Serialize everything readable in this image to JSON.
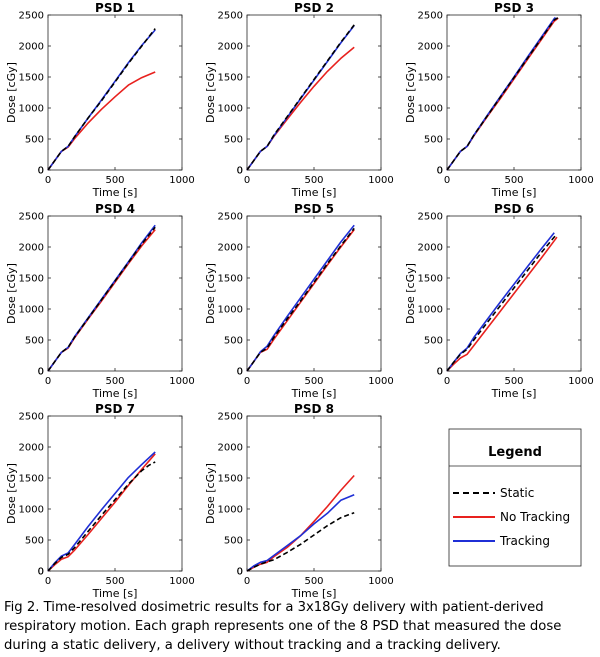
{
  "caption": "Fig 2. Time-resolved dosimetric results for a 3x18Gy delivery with patient-derived respiratory motion. Each graph represents one of the 8 PSD that measured the dose during a static delivery, a delivery without tracking and a tracking delivery.",
  "legend": {
    "title": "Legend",
    "items": [
      {
        "label": "Static",
        "color": "#000000",
        "dash": true
      },
      {
        "label": "No Tracking",
        "color": "#e8211e",
        "dash": false
      },
      {
        "label": "Tracking",
        "color": "#1f2fd6",
        "dash": false
      }
    ]
  },
  "chart_data": [
    {
      "type": "line",
      "title": "PSD 1",
      "xlabel": "Time [s]",
      "ylabel": "Dose [cGy]",
      "xlim": [
        0,
        1000
      ],
      "ylim": [
        0,
        2500
      ],
      "xticks": [
        0,
        500,
        1000
      ],
      "yticks": [
        0,
        500,
        1000,
        1500,
        2000,
        2500
      ],
      "series": [
        {
          "name": "Static",
          "x": [
            0,
            50,
            100,
            150,
            200,
            300,
            400,
            500,
            600,
            700,
            800
          ],
          "y": [
            0,
            150,
            300,
            380,
            540,
            840,
            1120,
            1420,
            1720,
            2000,
            2280
          ]
        },
        {
          "name": "No Tracking",
          "x": [
            0,
            50,
            100,
            150,
            200,
            300,
            400,
            500,
            600,
            700,
            800
          ],
          "y": [
            0,
            150,
            300,
            370,
            510,
            760,
            980,
            1180,
            1370,
            1490,
            1580
          ]
        },
        {
          "name": "Tracking",
          "x": [
            0,
            50,
            100,
            150,
            200,
            300,
            400,
            500,
            600,
            700,
            800
          ],
          "y": [
            0,
            150,
            300,
            380,
            540,
            840,
            1130,
            1430,
            1730,
            2010,
            2260
          ]
        }
      ]
    },
    {
      "type": "line",
      "title": "PSD 2",
      "xlabel": "Time [s]",
      "ylabel": "Dose [cGy]",
      "xlim": [
        0,
        1000
      ],
      "ylim": [
        0,
        2500
      ],
      "xticks": [
        0,
        500,
        1000
      ],
      "yticks": [
        0,
        500,
        1000,
        1500,
        2000,
        2500
      ],
      "series": [
        {
          "name": "Static",
          "x": [
            0,
            50,
            100,
            150,
            200,
            300,
            400,
            500,
            600,
            700,
            800
          ],
          "y": [
            0,
            150,
            300,
            380,
            560,
            860,
            1160,
            1460,
            1760,
            2060,
            2340
          ]
        },
        {
          "name": "No Tracking",
          "x": [
            0,
            50,
            100,
            150,
            200,
            300,
            400,
            500,
            600,
            700,
            800
          ],
          "y": [
            0,
            150,
            300,
            380,
            540,
            820,
            1090,
            1350,
            1590,
            1800,
            1980
          ]
        },
        {
          "name": "Tracking",
          "x": [
            0,
            50,
            100,
            150,
            200,
            300,
            400,
            500,
            600,
            700,
            800
          ],
          "y": [
            0,
            150,
            300,
            380,
            550,
            850,
            1150,
            1450,
            1750,
            2050,
            2330
          ]
        }
      ]
    },
    {
      "type": "line",
      "title": "PSD 3",
      "xlabel": "Time [s]",
      "ylabel": "Dose [cGy]",
      "xlim": [
        0,
        1000
      ],
      "ylim": [
        0,
        2500
      ],
      "xticks": [
        0,
        500,
        1000
      ],
      "yticks": [
        0,
        500,
        1000,
        1500,
        2000,
        2500
      ],
      "series": [
        {
          "name": "Static",
          "x": [
            0,
            50,
            100,
            150,
            200,
            300,
            400,
            500,
            600,
            700,
            800,
            830
          ],
          "y": [
            0,
            150,
            300,
            380,
            560,
            870,
            1180,
            1490,
            1800,
            2110,
            2420,
            2460
          ]
        },
        {
          "name": "No Tracking",
          "x": [
            0,
            50,
            100,
            150,
            200,
            300,
            400,
            500,
            600,
            700,
            800,
            830
          ],
          "y": [
            0,
            150,
            300,
            380,
            550,
            860,
            1160,
            1470,
            1780,
            2090,
            2400,
            2450
          ]
        },
        {
          "name": "Tracking",
          "x": [
            0,
            50,
            100,
            150,
            200,
            300,
            400,
            500,
            600,
            700,
            800,
            810
          ],
          "y": [
            0,
            150,
            300,
            380,
            560,
            880,
            1190,
            1500,
            1820,
            2130,
            2440,
            2460
          ]
        }
      ]
    },
    {
      "type": "line",
      "title": "PSD 4",
      "xlabel": "Time [s]",
      "ylabel": "Dose [cGy]",
      "xlim": [
        0,
        1000
      ],
      "ylim": [
        0,
        2500
      ],
      "xticks": [
        0,
        500,
        1000
      ],
      "yticks": [
        0,
        500,
        1000,
        1500,
        2000,
        2500
      ],
      "series": [
        {
          "name": "Static",
          "x": [
            0,
            50,
            100,
            150,
            200,
            300,
            400,
            500,
            600,
            700,
            800
          ],
          "y": [
            0,
            150,
            300,
            380,
            550,
            850,
            1150,
            1450,
            1750,
            2050,
            2320
          ]
        },
        {
          "name": "No Tracking",
          "x": [
            0,
            50,
            100,
            150,
            200,
            300,
            400,
            500,
            600,
            700,
            800
          ],
          "y": [
            0,
            150,
            300,
            370,
            540,
            840,
            1130,
            1430,
            1730,
            2020,
            2280
          ]
        },
        {
          "name": "Tracking",
          "x": [
            0,
            50,
            100,
            150,
            200,
            300,
            400,
            500,
            600,
            700,
            800
          ],
          "y": [
            0,
            150,
            300,
            380,
            560,
            860,
            1160,
            1460,
            1760,
            2070,
            2350
          ]
        }
      ]
    },
    {
      "type": "line",
      "title": "PSD 5",
      "xlabel": "Time [s]",
      "ylabel": "Dose [cGy]",
      "xlim": [
        0,
        1000
      ],
      "ylim": [
        0,
        2500
      ],
      "xticks": [
        0,
        500,
        1000
      ],
      "yticks": [
        0,
        500,
        1000,
        1500,
        2000,
        2500
      ],
      "series": [
        {
          "name": "Static",
          "x": [
            0,
            50,
            100,
            150,
            200,
            300,
            400,
            500,
            600,
            700,
            800
          ],
          "y": [
            0,
            150,
            300,
            370,
            540,
            840,
            1130,
            1430,
            1730,
            2020,
            2300
          ]
        },
        {
          "name": "No Tracking",
          "x": [
            0,
            50,
            100,
            150,
            200,
            300,
            400,
            500,
            600,
            700,
            800
          ],
          "y": [
            0,
            150,
            300,
            350,
            510,
            810,
            1110,
            1410,
            1710,
            2000,
            2280
          ]
        },
        {
          "name": "Tracking",
          "x": [
            0,
            50,
            100,
            150,
            200,
            300,
            400,
            500,
            600,
            700,
            800
          ],
          "y": [
            0,
            150,
            310,
            400,
            570,
            880,
            1180,
            1480,
            1780,
            2080,
            2350
          ]
        }
      ]
    },
    {
      "type": "line",
      "title": "PSD 6",
      "xlabel": "Time [s]",
      "ylabel": "Dose [cGy]",
      "xlim": [
        0,
        1000
      ],
      "ylim": [
        0,
        2500
      ],
      "xticks": [
        0,
        500,
        1000
      ],
      "yticks": [
        0,
        500,
        1000,
        1500,
        2000,
        2500
      ],
      "series": [
        {
          "name": "Static",
          "x": [
            0,
            50,
            100,
            150,
            200,
            300,
            400,
            500,
            600,
            700,
            800,
            820
          ],
          "y": [
            0,
            140,
            270,
            350,
            500,
            780,
            1060,
            1340,
            1620,
            1900,
            2160,
            2200
          ]
        },
        {
          "name": "No Tracking",
          "x": [
            0,
            50,
            100,
            150,
            200,
            300,
            400,
            500,
            600,
            700,
            800,
            820
          ],
          "y": [
            0,
            110,
            210,
            270,
            410,
            690,
            970,
            1250,
            1530,
            1810,
            2100,
            2160
          ]
        },
        {
          "name": "Tracking",
          "x": [
            0,
            50,
            100,
            150,
            200,
            300,
            400,
            500,
            600,
            700,
            800
          ],
          "y": [
            0,
            140,
            280,
            370,
            540,
            830,
            1120,
            1400,
            1680,
            1960,
            2230
          ]
        }
      ]
    },
    {
      "type": "line",
      "title": "PSD 7",
      "xlabel": "Time [s]",
      "ylabel": "Dose [cGy]",
      "xlim": [
        0,
        1000
      ],
      "ylim": [
        0,
        2500
      ],
      "xticks": [
        0,
        500,
        1000
      ],
      "yticks": [
        0,
        500,
        1000,
        1500,
        2000,
        2500
      ],
      "series": [
        {
          "name": "Static",
          "x": [
            0,
            50,
            100,
            150,
            200,
            300,
            400,
            500,
            600,
            700,
            750,
            800
          ],
          "y": [
            0,
            120,
            220,
            270,
            380,
            640,
            900,
            1150,
            1400,
            1620,
            1700,
            1760
          ]
        },
        {
          "name": "No Tracking",
          "x": [
            0,
            50,
            100,
            150,
            200,
            300,
            400,
            500,
            600,
            700,
            800
          ],
          "y": [
            0,
            100,
            190,
            230,
            340,
            590,
            850,
            1110,
            1380,
            1640,
            1890
          ]
        },
        {
          "name": "Tracking",
          "x": [
            0,
            50,
            100,
            150,
            200,
            300,
            400,
            500,
            600,
            700,
            800
          ],
          "y": [
            0,
            130,
            240,
            290,
            430,
            720,
            990,
            1250,
            1510,
            1720,
            1920
          ]
        }
      ]
    },
    {
      "type": "line",
      "title": "PSD 8",
      "xlabel": "Time [s]",
      "ylabel": "Dose [cGy]",
      "xlim": [
        0,
        1000
      ],
      "ylim": [
        0,
        2500
      ],
      "xticks": [
        0,
        500,
        1000
      ],
      "yticks": [
        0,
        500,
        1000,
        1500,
        2000,
        2500
      ],
      "series": [
        {
          "name": "Static",
          "x": [
            0,
            50,
            100,
            150,
            200,
            300,
            400,
            500,
            600,
            700,
            800
          ],
          "y": [
            0,
            60,
            110,
            150,
            180,
            300,
            430,
            580,
            730,
            860,
            940
          ]
        },
        {
          "name": "No Tracking",
          "x": [
            0,
            50,
            100,
            150,
            200,
            300,
            400,
            500,
            600,
            700,
            800
          ],
          "y": [
            0,
            60,
            110,
            140,
            230,
            380,
            570,
            800,
            1040,
            1300,
            1540
          ]
        },
        {
          "name": "Tracking",
          "x": [
            0,
            50,
            100,
            150,
            200,
            300,
            400,
            500,
            600,
            700,
            800
          ],
          "y": [
            0,
            80,
            140,
            170,
            250,
            410,
            570,
            760,
            930,
            1140,
            1230
          ]
        }
      ]
    }
  ]
}
